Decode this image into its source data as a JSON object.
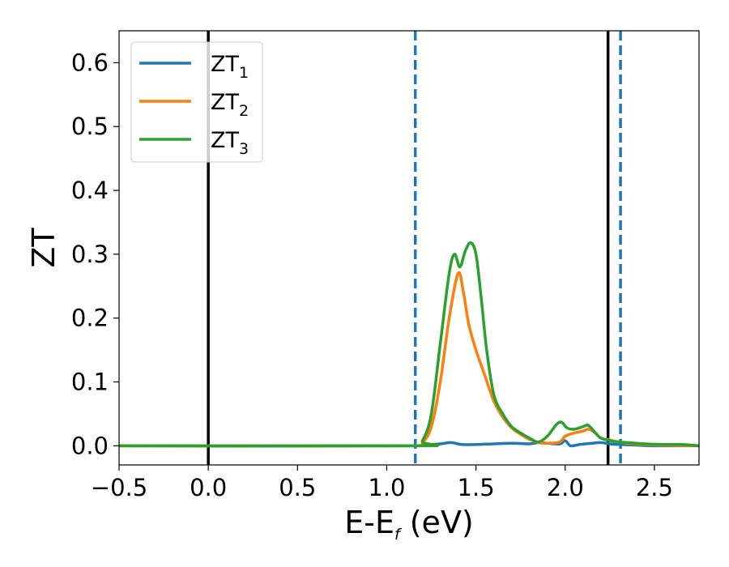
{
  "chart_data": {
    "type": "line",
    "xlabel": {
      "base": "E-E",
      "sub": "f",
      "rest": " (eV)"
    },
    "ylabel": "ZT",
    "xlim": [
      -0.5,
      2.75
    ],
    "ylim": [
      -0.03,
      0.65
    ],
    "xticks": [
      -0.5,
      0.0,
      0.5,
      1.0,
      1.5,
      2.0,
      2.5
    ],
    "xtick_labels": [
      "−0.5",
      "0.0",
      "0.5",
      "1.0",
      "1.5",
      "2.0",
      "2.5"
    ],
    "yticks": [
      0.0,
      0.1,
      0.2,
      0.3,
      0.4,
      0.5,
      0.6
    ],
    "ytick_labels": [
      "0.0",
      "0.1",
      "0.2",
      "0.3",
      "0.4",
      "0.5",
      "0.6"
    ],
    "grid": false,
    "legend_position": "top-left",
    "vlines": [
      {
        "x": 0.0,
        "style": "solid",
        "color": "#000000"
      },
      {
        "x": 2.24,
        "style": "solid",
        "color": "#000000"
      },
      {
        "x": 1.16,
        "style": "dashed",
        "color": "#1f77b4"
      },
      {
        "x": 2.31,
        "style": "dashed",
        "color": "#1f77b4"
      }
    ],
    "series": [
      {
        "name": "ZT",
        "sub": "1",
        "color": "#1f77b4",
        "points": [
          [
            -0.5,
            0
          ],
          [
            1.15,
            0
          ],
          [
            1.2,
            0.001
          ],
          [
            1.3,
            0.003
          ],
          [
            1.36,
            0.005
          ],
          [
            1.42,
            0.002
          ],
          [
            1.5,
            0.002
          ],
          [
            1.6,
            0.003
          ],
          [
            1.7,
            0.004
          ],
          [
            1.8,
            0.003
          ],
          [
            1.85,
            0.005
          ],
          [
            1.9,
            0.004
          ],
          [
            1.97,
            0.003
          ],
          [
            2.0,
            0.008
          ],
          [
            2.03,
            0.0
          ],
          [
            2.08,
            0.002
          ],
          [
            2.15,
            0.004
          ],
          [
            2.2,
            0.005
          ],
          [
            2.25,
            0.003
          ],
          [
            2.3,
            0.002
          ],
          [
            2.4,
            0.001
          ],
          [
            2.5,
            0
          ],
          [
            2.75,
            0
          ]
        ]
      },
      {
        "name": "ZT",
        "sub": "2",
        "color": "#ff7f0e",
        "points": [
          [
            -0.5,
            0
          ],
          [
            1.15,
            0
          ],
          [
            1.2,
            0.005
          ],
          [
            1.25,
            0.03
          ],
          [
            1.3,
            0.1
          ],
          [
            1.35,
            0.2
          ],
          [
            1.4,
            0.27
          ],
          [
            1.43,
            0.24
          ],
          [
            1.46,
            0.19
          ],
          [
            1.5,
            0.15
          ],
          [
            1.55,
            0.11
          ],
          [
            1.6,
            0.07
          ],
          [
            1.65,
            0.045
          ],
          [
            1.7,
            0.028
          ],
          [
            1.75,
            0.018
          ],
          [
            1.8,
            0.01
          ],
          [
            1.85,
            0.005
          ],
          [
            1.9,
            0.004
          ],
          [
            1.97,
            0.006
          ],
          [
            2.0,
            0.015
          ],
          [
            2.05,
            0.02
          ],
          [
            2.1,
            0.023
          ],
          [
            2.13,
            0.026
          ],
          [
            2.17,
            0.02
          ],
          [
            2.2,
            0.012
          ],
          [
            2.25,
            0.009
          ],
          [
            2.3,
            0.006
          ],
          [
            2.35,
            0.004
          ],
          [
            2.45,
            0.002
          ],
          [
            2.55,
            0.001
          ],
          [
            2.75,
            0
          ]
        ]
      },
      {
        "name": "ZT",
        "sub": "3",
        "color": "#2ca02c",
        "points": [
          [
            -0.5,
            0
          ],
          [
            1.15,
            0
          ],
          [
            1.2,
            0.008
          ],
          [
            1.25,
            0.05
          ],
          [
            1.3,
            0.16
          ],
          [
            1.35,
            0.27
          ],
          [
            1.38,
            0.3
          ],
          [
            1.41,
            0.28
          ],
          [
            1.44,
            0.305
          ],
          [
            1.47,
            0.318
          ],
          [
            1.5,
            0.3
          ],
          [
            1.53,
            0.23
          ],
          [
            1.56,
            0.15
          ],
          [
            1.6,
            0.08
          ],
          [
            1.65,
            0.05
          ],
          [
            1.7,
            0.03
          ],
          [
            1.75,
            0.02
          ],
          [
            1.8,
            0.012
          ],
          [
            1.85,
            0.006
          ],
          [
            1.9,
            0.015
          ],
          [
            1.95,
            0.033
          ],
          [
            1.98,
            0.037
          ],
          [
            2.01,
            0.028
          ],
          [
            2.05,
            0.026
          ],
          [
            2.1,
            0.03
          ],
          [
            2.13,
            0.032
          ],
          [
            2.17,
            0.02
          ],
          [
            2.2,
            0.012
          ],
          [
            2.25,
            0.008
          ],
          [
            2.3,
            0.006
          ],
          [
            2.35,
            0.005
          ],
          [
            2.45,
            0.003
          ],
          [
            2.55,
            0.002
          ],
          [
            2.65,
            0.002
          ],
          [
            2.75,
            0
          ]
        ]
      }
    ]
  }
}
